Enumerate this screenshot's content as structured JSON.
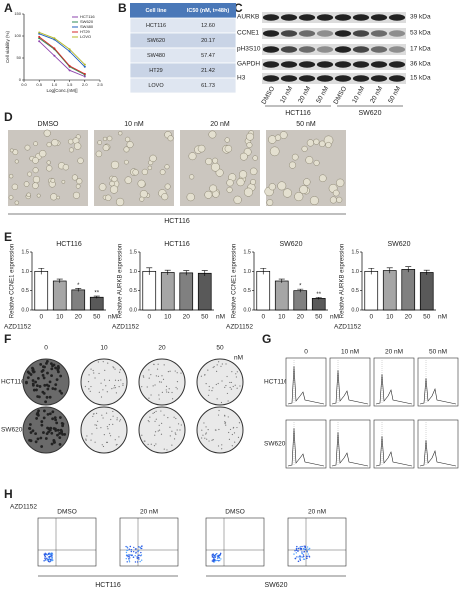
{
  "panel_labels": [
    "A",
    "B",
    "C",
    "D",
    "E",
    "F",
    "G",
    "H"
  ],
  "chart_data": [
    {
      "type": "line",
      "y_label": "Cell viability (%)",
      "x_label": "Log[Conc.(nM)]",
      "x": [
        0.5,
        1,
        1.5,
        2
      ],
      "xlim": [
        0,
        2.5
      ],
      "xticks": [
        {
          "value": 0,
          "label": "0.0"
        },
        0.5,
        {
          "value": 1,
          "label": "1.0"
        },
        1.5,
        {
          "value": 2,
          "label": "2.0"
        },
        2.5
      ],
      "ylim": [
        0,
        150
      ],
      "yticks": [
        0,
        50,
        100,
        150
      ],
      "series": [
        {
          "name": "HCT116",
          "color": "#8e44ad",
          "values": [
            88,
            55,
            22,
            8
          ]
        },
        {
          "name": "SW620",
          "color": "#2e8b57",
          "values": [
            95,
            70,
            30,
            12
          ]
        },
        {
          "name": "SW480",
          "color": "#1f5fbf",
          "values": [
            105,
            92,
            65,
            30
          ]
        },
        {
          "name": "HT29",
          "color": "#d62728",
          "values": [
            98,
            72,
            32,
            14
          ]
        },
        {
          "name": "LOVO",
          "color": "#b5b82a",
          "values": [
            108,
            95,
            70,
            35
          ]
        }
      ]
    },
    {
      "type": "bar",
      "title": "HCT116",
      "y_label": "Relative CCNE1 expression",
      "x_label": "AZD1152",
      "x_unit": "nM",
      "categories": [
        "0",
        "10",
        "20",
        "50"
      ],
      "values": [
        1.0,
        0.75,
        0.52,
        0.33
      ],
      "errors": [
        0.08,
        0.05,
        0.04,
        0.03
      ],
      "significance": [
        null,
        null,
        "*",
        "**"
      ],
      "colors": [
        "#ffffff",
        "#a6a6a6",
        "#808080",
        "#595959"
      ],
      "ylim": [
        0,
        1.5
      ],
      "yticks": [
        {
          "value": 0,
          "label": "0.0"
        },
        0.5,
        {
          "value": 1,
          "label": "1.0"
        },
        1.5
      ]
    },
    {
      "type": "bar",
      "title": "HCT116",
      "y_label": "Relative AURKB expression",
      "x_label": "AZD1152",
      "x_unit": "nM",
      "categories": [
        "0",
        "10",
        "20",
        "50"
      ],
      "values": [
        1.0,
        0.97,
        0.96,
        0.95
      ],
      "errors": [
        0.09,
        0.06,
        0.06,
        0.07
      ],
      "significance": [
        null,
        null,
        null,
        null
      ],
      "colors": [
        "#ffffff",
        "#a6a6a6",
        "#808080",
        "#595959"
      ],
      "ylim": [
        0,
        1.5
      ],
      "yticks": [
        {
          "value": 0,
          "label": "0.0"
        },
        0.5,
        {
          "value": 1,
          "label": "1.0"
        },
        1.5
      ]
    },
    {
      "type": "bar",
      "title": "SW620",
      "y_label": "Relative CCNE1 expression",
      "x_label": "AZD1152",
      "x_unit": "nM",
      "categories": [
        "0",
        "10",
        "20",
        "50"
      ],
      "values": [
        1.0,
        0.75,
        0.5,
        0.3
      ],
      "errors": [
        0.08,
        0.05,
        0.04,
        0.03
      ],
      "significance": [
        null,
        null,
        "*",
        "**"
      ],
      "colors": [
        "#ffffff",
        "#a6a6a6",
        "#808080",
        "#595959"
      ],
      "ylim": [
        0,
        1.5
      ],
      "yticks": [
        {
          "value": 0,
          "label": "0.0"
        },
        0.5,
        {
          "value": 1,
          "label": "1.0"
        },
        1.5
      ]
    },
    {
      "type": "bar",
      "title": "SW620",
      "y_label": "Relative AURKB expression",
      "x_label": "AZD1152",
      "x_unit": "nM",
      "categories": [
        "0",
        "10",
        "20",
        "50"
      ],
      "values": [
        1.0,
        1.02,
        1.05,
        0.97
      ],
      "errors": [
        0.08,
        0.07,
        0.07,
        0.06
      ],
      "significance": [
        null,
        null,
        null,
        null
      ],
      "colors": [
        "#ffffff",
        "#a6a6a6",
        "#808080",
        "#595959"
      ],
      "ylim": [
        0,
        1.5
      ],
      "yticks": [
        {
          "value": 0,
          "label": "0.0"
        },
        0.5,
        {
          "value": 1,
          "label": "1.0"
        },
        1.5
      ]
    }
  ],
  "table": {
    "header": [
      "Cell line",
      "IC50 (nM, t=48h)"
    ],
    "rows": [
      [
        "HCT116",
        "12.60"
      ],
      [
        "SW620",
        "20.17"
      ],
      [
        "SW480",
        "57.47"
      ],
      [
        "HT29",
        "21.42"
      ],
      [
        "LOVO",
        "61.73"
      ]
    ]
  },
  "western": {
    "proteins": [
      [
        "AURKB",
        "39 kDa"
      ],
      [
        "CCNE1",
        "53 kDa"
      ],
      [
        "pH3S10",
        "17 kDa"
      ],
      [
        "GAPDH",
        "36 kDa"
      ],
      [
        "H3",
        "15 kDa"
      ]
    ],
    "lanes": [
      "DMSO",
      "10 nM",
      "20 nM",
      "50 nM",
      "DMSO",
      "10 nM",
      "20 nM",
      "50 nM"
    ],
    "groups": [
      "HCT116",
      "SW620"
    ]
  },
  "panel_d": {
    "conditions": [
      "DMSO",
      "10 nM",
      "20 nM",
      "50 nM"
    ],
    "cell_line": "HCT116"
  },
  "panel_f": {
    "concentrations": [
      "0",
      "10",
      "20",
      "50"
    ],
    "unit": "nM",
    "cell_lines": [
      "HCT116",
      "SW620"
    ]
  },
  "panel_g": {
    "conditions": [
      "0",
      "10 nM",
      "20 nM",
      "50 nM"
    ],
    "cell_lines": [
      "HCT116",
      "SW620"
    ]
  },
  "panel_h": {
    "treatment": "AZD1152",
    "conditions": [
      "DMSO",
      "20 nM",
      "DMSO",
      "20 nM"
    ],
    "cell_lines": [
      "HCT116",
      "SW620"
    ]
  }
}
